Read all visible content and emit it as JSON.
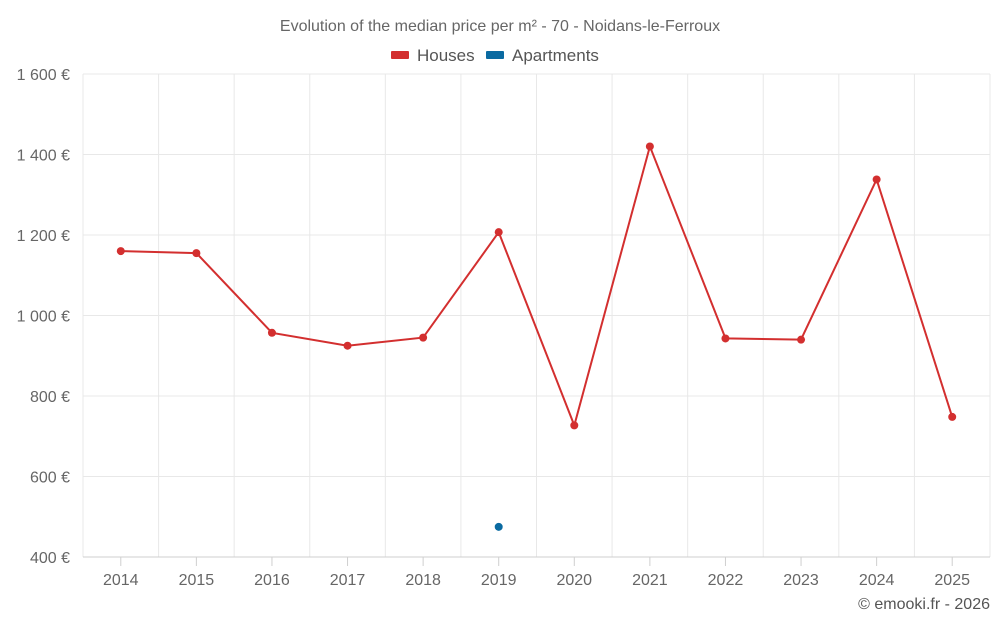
{
  "chart_data": {
    "type": "line",
    "title": "Evolution of the median price per m² - 70 - Noidans-le-Ferroux",
    "categories": [
      "2014",
      "2015",
      "2016",
      "2017",
      "2018",
      "2019",
      "2020",
      "2021",
      "2022",
      "2023",
      "2024",
      "2025"
    ],
    "series": [
      {
        "name": "Houses",
        "color": "#d32f2f",
        "values": [
          1160,
          1155,
          957,
          925,
          945,
          1207,
          727,
          1420,
          943,
          940,
          1338,
          748
        ]
      },
      {
        "name": "Apartments",
        "color": "#0a6aa1",
        "values": [
          null,
          null,
          null,
          null,
          null,
          475,
          null,
          null,
          null,
          null,
          null,
          null
        ]
      }
    ],
    "ylim": [
      400,
      1600
    ],
    "yticks": [
      400,
      600,
      800,
      1000,
      1200,
      1400,
      1600
    ],
    "ytick_labels": [
      "400 €",
      "600 €",
      "800 €",
      "1 000 €",
      "1 200 €",
      "1 400 €",
      "1 600 €"
    ],
    "legend_position": "top-center",
    "grid": true
  },
  "credit": "© emooki.fr - 2026"
}
